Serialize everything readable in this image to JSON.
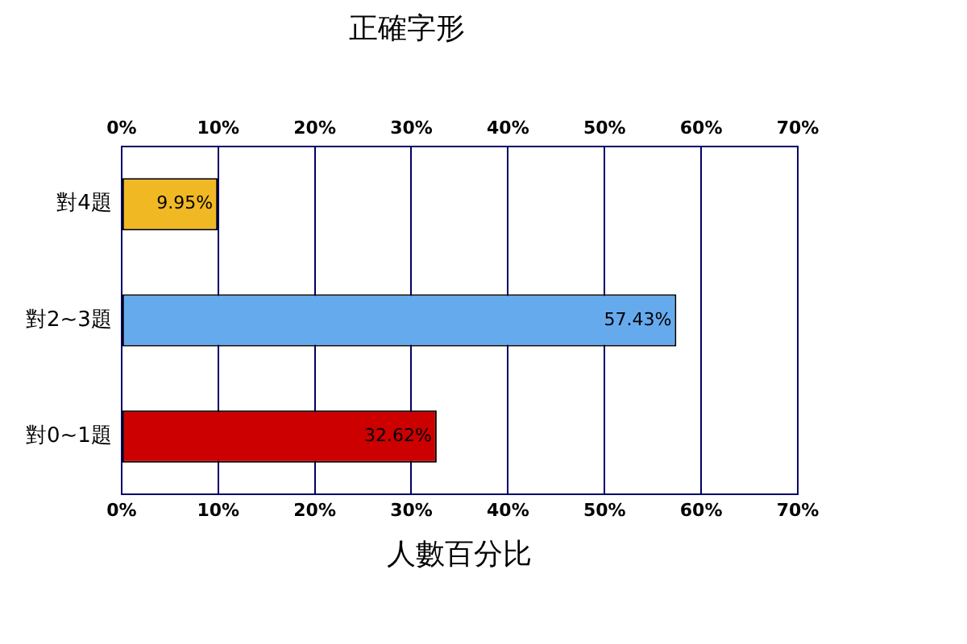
{
  "chart_data": {
    "type": "bar",
    "orientation": "horizontal",
    "title": "正確字形",
    "xlabel": "人數百分比",
    "categories": [
      "對4題",
      "對2~3題",
      "對0~1題"
    ],
    "values": [
      9.95,
      57.43,
      32.62
    ],
    "colors": [
      "#f0b823",
      "#66aaee",
      "#cc0000"
    ],
    "value_labels": [
      "9.95%",
      "57.43%",
      "32.62%"
    ],
    "xlim": [
      0,
      70
    ],
    "xticks": [
      {
        "value": 0,
        "label": "0%"
      },
      {
        "value": 10,
        "label": "10%"
      },
      {
        "value": 20,
        "label": "20%"
      },
      {
        "value": 30,
        "label": "30%"
      },
      {
        "value": 40,
        "label": "40%"
      },
      {
        "value": 50,
        "label": "50%"
      },
      {
        "value": 60,
        "label": "60%"
      },
      {
        "value": 70,
        "label": "70%"
      }
    ],
    "x2lim": [
      0,
      70
    ],
    "x2ticks": [
      {
        "value": 0,
        "label": "0%"
      },
      {
        "value": 10,
        "label": "10%"
      },
      {
        "value": 20,
        "label": "20%"
      },
      {
        "value": 30,
        "label": "30%"
      },
      {
        "value": 40,
        "label": "40%"
      },
      {
        "value": 50,
        "label": "50%"
      },
      {
        "value": 60,
        "label": "60%"
      },
      {
        "value": 70,
        "label": "70%"
      }
    ],
    "grid": "x",
    "legend": false
  }
}
